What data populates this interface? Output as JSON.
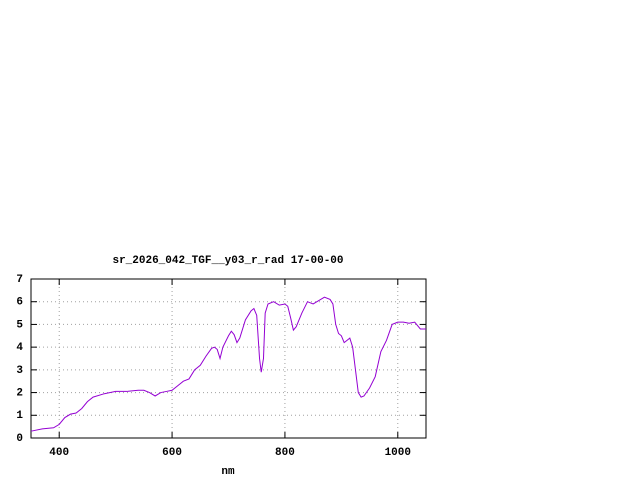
{
  "chart_data": {
    "type": "line",
    "title": "sr_2026_042_TGF__y03_r_rad 17-00-00",
    "x_label": "nm",
    "x": [
      350,
      370,
      390,
      400,
      410,
      420,
      430,
      440,
      450,
      460,
      480,
      500,
      520,
      540,
      550,
      560,
      570,
      580,
      590,
      600,
      610,
      620,
      630,
      640,
      650,
      660,
      670,
      675,
      680,
      685,
      690,
      700,
      705,
      710,
      715,
      720,
      730,
      740,
      745,
      750,
      755,
      758,
      762,
      765,
      770,
      780,
      790,
      800,
      805,
      810,
      815,
      820,
      830,
      840,
      850,
      860,
      870,
      880,
      885,
      890,
      895,
      900,
      905,
      910,
      915,
      920,
      925,
      930,
      935,
      940,
      950,
      960,
      970,
      980,
      990,
      1000,
      1010,
      1020,
      1030,
      1040,
      1050
    ],
    "series": [
      {
        "color": "#9400d3",
        "values": [
          0.3,
          0.4,
          0.45,
          0.6,
          0.9,
          1.05,
          1.1,
          1.3,
          1.6,
          1.8,
          1.95,
          2.05,
          2.05,
          2.1,
          2.1,
          2.0,
          1.85,
          2.0,
          2.05,
          2.1,
          2.3,
          2.5,
          2.6,
          3.0,
          3.2,
          3.6,
          3.95,
          4.0,
          3.9,
          3.5,
          4.0,
          4.5,
          4.7,
          4.55,
          4.2,
          4.4,
          5.2,
          5.6,
          5.7,
          5.4,
          3.5,
          2.9,
          3.5,
          5.5,
          5.9,
          6.0,
          5.85,
          5.9,
          5.8,
          5.3,
          4.75,
          4.9,
          5.5,
          6.0,
          5.9,
          6.05,
          6.2,
          6.1,
          5.9,
          5.0,
          4.6,
          4.5,
          4.2,
          4.3,
          4.4,
          4.0,
          3.0,
          2.0,
          1.8,
          1.85,
          2.2,
          2.7,
          3.8,
          4.3,
          5.0,
          5.1,
          5.1,
          5.05,
          5.1,
          4.8,
          4.8
        ]
      }
    ],
    "xlim": [
      350,
      1050
    ],
    "ylim": [
      0,
      7
    ],
    "xticks": [
      400,
      600,
      800,
      1000
    ],
    "yticks": [
      0,
      1,
      2,
      3,
      4,
      5,
      6,
      7
    ],
    "grid": true
  }
}
